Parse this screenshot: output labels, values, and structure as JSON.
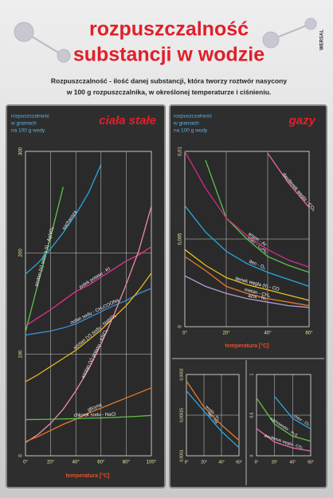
{
  "header": {
    "title_lines": [
      "rozpuszczalność",
      "substancji w wodzie"
    ],
    "description_lines": [
      "Rozpuszczalność - ilość danej substancji, która tworzy roztwór nasycony",
      "w 100 g rozpuszczalnika, w określonej temperaturze i ciśnieniu."
    ],
    "logo": "WERSAL"
  },
  "chart_data": [
    {
      "type": "line",
      "title": "ciała stałe",
      "ylabel": [
        "rozpuszczalność",
        "w gramach",
        "na 100 g wody"
      ],
      "xlabel": "temperatura [°C]",
      "x": [
        0,
        10,
        20,
        30,
        40,
        50,
        60,
        70,
        80,
        90,
        100
      ],
      "xlim": [
        0,
        100
      ],
      "ylim": [
        0,
        300
      ],
      "grid": true,
      "xticks": [
        {
          "value": 0,
          "label": "0°"
        },
        {
          "value": 20,
          "label": "20°"
        },
        {
          "value": 40,
          "label": "40°"
        },
        {
          "value": 60,
          "label": "60°"
        },
        {
          "value": 80,
          "label": "80°"
        },
        {
          "value": 100,
          "label": "100°"
        }
      ],
      "yticks": [
        0,
        100,
        200,
        300
      ],
      "series": [
        {
          "name": "azotan (V) srebra (I) - AgNO₃",
          "color": "#5ec24a",
          "values": [
            122,
            170,
            216,
            265,
            null,
            null,
            null,
            null,
            null,
            null,
            null
          ]
        },
        {
          "name": "sacharoza",
          "color": "#29a8e0",
          "values": [
            179,
            190,
            204,
            220,
            238,
            259,
            287,
            null,
            null,
            null,
            null
          ]
        },
        {
          "name": "jodek potasu - KI",
          "color": "#e0338f",
          "values": [
            128,
            136,
            144,
            153,
            162,
            168,
            176,
            184,
            192,
            198,
            206
          ]
        },
        {
          "name": "octan sodu - CH₃COONa",
          "color": "#3b8fd9",
          "values": [
            119,
            121,
            123,
            126,
            130,
            136,
            142,
            148,
            153,
            160,
            165
          ]
        },
        {
          "name": "azotan (V) sodu - NaNO₃",
          "color": "#e8b820",
          "values": [
            73,
            80,
            88,
            96,
            104,
            114,
            124,
            136,
            148,
            163,
            180
          ]
        },
        {
          "name": "azotan (V) potasu - KNO₃",
          "color": "#f08aa8",
          "values": [
            13,
            21,
            32,
            46,
            64,
            85,
            110,
            138,
            169,
            202,
            246
          ]
        },
        {
          "name": "glicyna",
          "color": "#e8782a",
          "values": [
            14,
            19,
            25,
            31,
            36,
            42,
            47,
            52,
            57,
            62,
            67
          ]
        },
        {
          "name": "chlorek sodu - NaCl",
          "color": "#5ec24a",
          "values": [
            35.7,
            35.8,
            36,
            36.3,
            36.6,
            37,
            37.3,
            37.8,
            38.4,
            39,
            39.8
          ]
        }
      ]
    },
    {
      "type": "line",
      "title": "gazy",
      "ylabel": [
        "rozpuszczalność",
        "w gramach",
        "na 100 g wody"
      ],
      "xlabel": "temperatura [°C]",
      "x": [
        0,
        10,
        20,
        30,
        40,
        50,
        60
      ],
      "xlim": [
        0,
        60
      ],
      "ylim": [
        0,
        0.01
      ],
      "grid": true,
      "xticks": [
        {
          "value": 0,
          "label": "0°"
        },
        {
          "value": 20,
          "label": "20°"
        },
        {
          "value": 40,
          "label": "40°"
        },
        {
          "value": 60,
          "label": "60°"
        }
      ],
      "yticks": [
        0,
        {
          "value": 0.005,
          "label": "0,005"
        },
        {
          "value": 0.01,
          "label": "0,01"
        }
      ],
      "series": [
        {
          "name": "etan - C₂H₆",
          "color": "#5ec24a",
          "values": [
            null,
            0.0095,
            0.0062,
            0.005,
            0.004,
            0.0035,
            0.0031
          ]
        },
        {
          "name": "dwutlenek węgla - CO₂",
          "color": "#e86aa8",
          "values": [
            null,
            null,
            null,
            null,
            0.0099,
            0.0082,
            0.0068
          ]
        },
        {
          "name": "tlen - O₂",
          "color": "#29a8e0",
          "values": [
            0.0069,
            0.0054,
            0.0043,
            0.0036,
            0.0031,
            0.0027,
            0.0023
          ]
        },
        {
          "name": "argon - Ar",
          "color": "#d02a8a",
          "values": [
            0.01,
            0.0079,
            0.0062,
            0.0052,
            0.0044,
            0.0038,
            0.0034
          ]
        },
        {
          "name": "tlenek węgla (II) - CO",
          "color": "#e8c020",
          "values": [
            0.0044,
            0.0035,
            0.0028,
            0.0024,
            0.0021,
            0.0018,
            0.0015
          ]
        },
        {
          "name": "metan - CH₄",
          "color": "#e8782a",
          "values": [
            0.004,
            0.0032,
            0.0023,
            0.0019,
            0.0016,
            0.0014,
            0.0012
          ]
        },
        {
          "name": "azot - N₂",
          "color": "#b79ad8",
          "values": [
            0.0029,
            0.0023,
            0.0019,
            0.0016,
            0.0014,
            0.0012,
            0.0011
          ]
        }
      ]
    },
    {
      "type": "line",
      "x": [
        0,
        20,
        40,
        60
      ],
      "xlim": [
        0,
        60
      ],
      "ylim": [
        0.0001,
        0.0002
      ],
      "grid": true,
      "xticks": [
        {
          "value": 0,
          "label": "0°"
        },
        {
          "value": 20,
          "label": "20°"
        },
        {
          "value": 40,
          "label": "40°"
        },
        {
          "value": 60,
          "label": "60°"
        }
      ],
      "yticks": [
        {
          "value": 0.0001,
          "label": "0,0001"
        },
        {
          "value": 0.00015,
          "label": "0,00015"
        },
        {
          "value": 0.0002,
          "label": "0,0002"
        }
      ],
      "series": [
        {
          "name": "wodór - H₂",
          "color": "#e8782a",
          "values": [
            0.000192,
            0.00016,
            0.000138,
            0.000119
          ]
        },
        {
          "name": "hel - He",
          "color": "#29a8e0",
          "values": [
            0.00018,
            0.000155,
            0.00013,
            0.00011
          ]
        }
      ]
    },
    {
      "type": "line",
      "x": [
        0,
        20,
        40,
        60
      ],
      "xlim": [
        0,
        60
      ],
      "ylim": [
        0,
        1
      ],
      "grid": true,
      "xticks": [
        {
          "value": 0,
          "label": "0°"
        },
        {
          "value": 20,
          "label": "20°"
        },
        {
          "value": 40,
          "label": "40°"
        },
        {
          "value": 60,
          "label": "60°"
        }
      ],
      "yticks": [
        0,
        {
          "value": 0.5,
          "label": "0,5"
        },
        1
      ],
      "series": [
        {
          "name": "chlor - Cl₂",
          "color": "#29a8e0",
          "values": [
            null,
            0.73,
            0.46,
            0.33
          ]
        },
        {
          "name": "siarkowodór - H₂S",
          "color": "#5ec24a",
          "values": [
            0.71,
            0.39,
            0.24,
            0.18
          ]
        },
        {
          "name": "dwutlenek węgla - CO₂",
          "color": "#e86aa8",
          "values": [
            0.335,
            0.169,
            0.097,
            0.058
          ]
        }
      ]
    }
  ]
}
